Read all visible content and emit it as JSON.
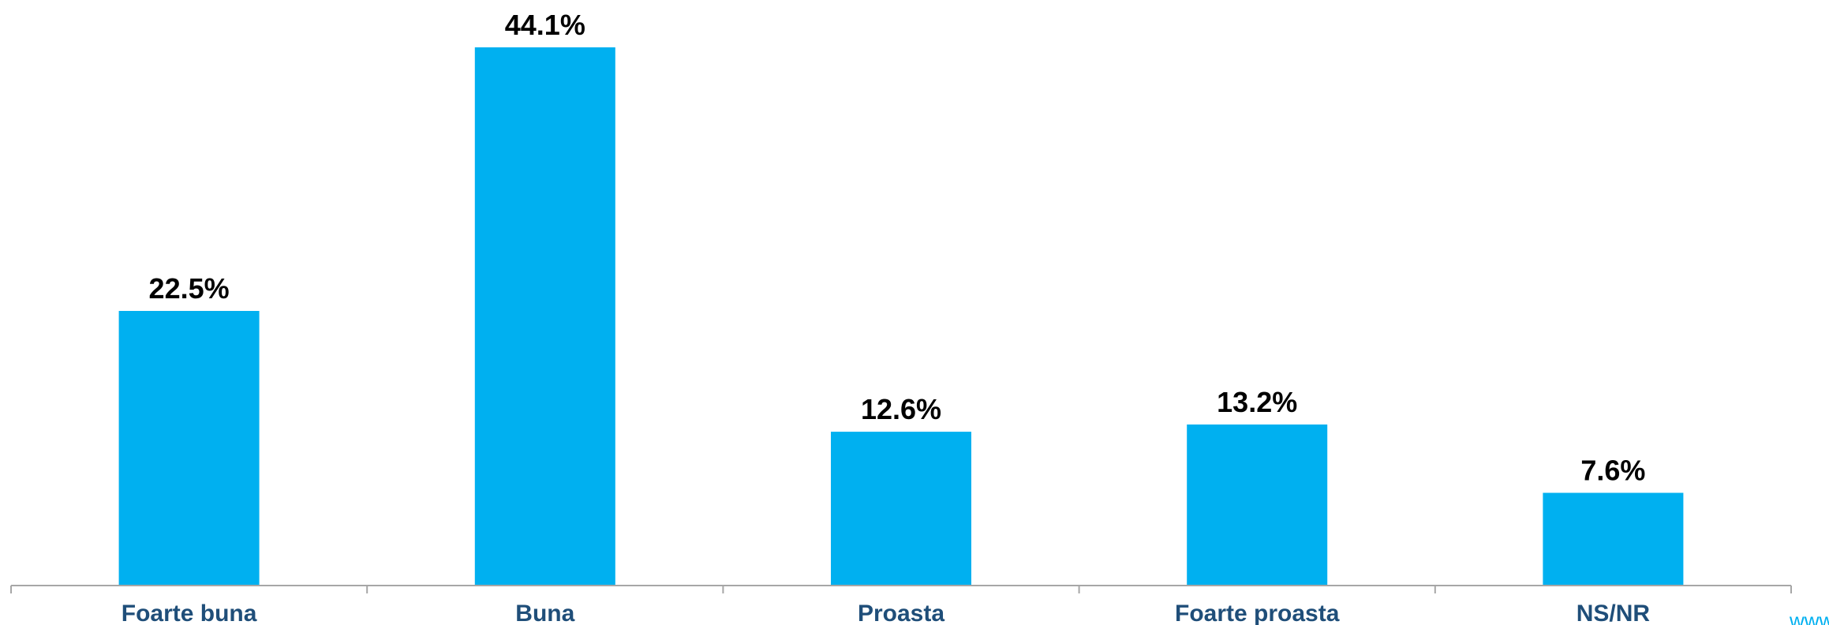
{
  "chart_data": {
    "type": "bar",
    "categories": [
      "Foarte buna",
      "Buna",
      "Proasta",
      "Foarte proasta",
      "NS/NR"
    ],
    "values": [
      22.5,
      44.1,
      12.6,
      13.2,
      7.6
    ],
    "value_labels": [
      "22.5%",
      "44.1%",
      "12.6%",
      "13.2%",
      "7.6%"
    ],
    "title": "",
    "xlabel": "",
    "ylabel": "",
    "ylim": [
      0,
      44.1
    ],
    "grid": false,
    "legend": "none",
    "colors": {
      "bar": "#00B0F0",
      "category_text": "#1F4E79",
      "value_text": "#000000",
      "axis": "#A6A6A6",
      "watermark": "#00B0F0"
    }
  },
  "watermark": {
    "text": "www"
  }
}
